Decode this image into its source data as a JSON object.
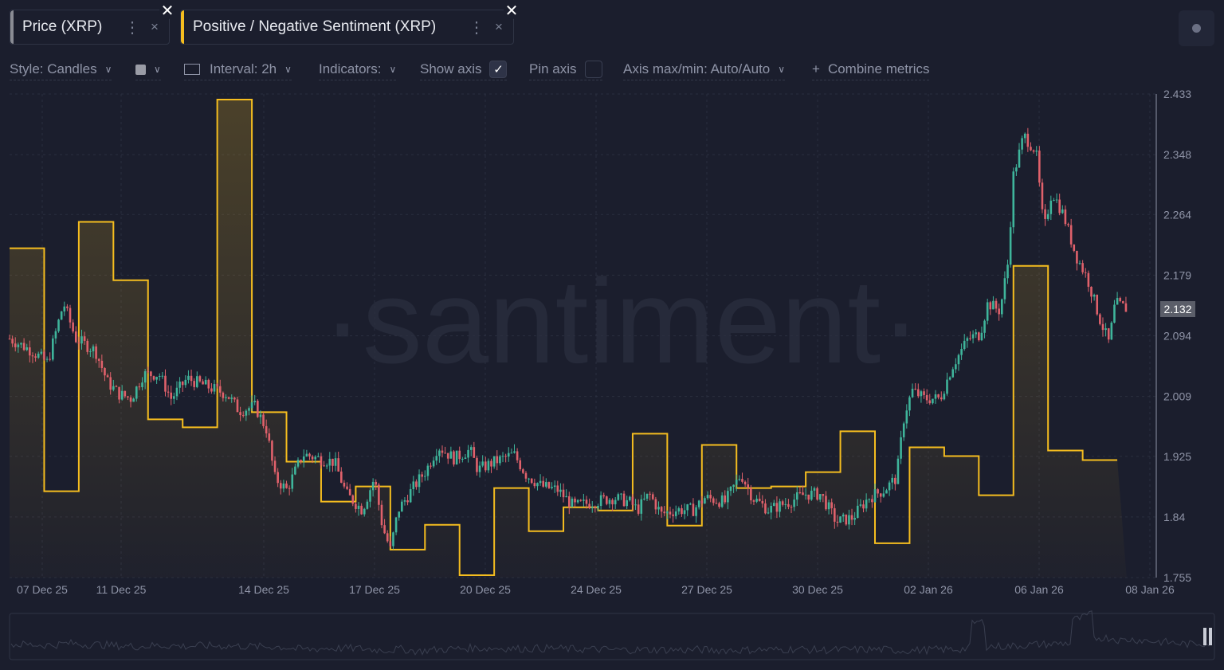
{
  "tabs": [
    {
      "label": "Price (XRP)",
      "color": "#8a8c94"
    },
    {
      "label": "Positive / Negative Sentiment (XRP)",
      "color": "#f5bd1f"
    }
  ],
  "tab_close_symbol": "×",
  "toolbar": {
    "style": "Style: Candles",
    "interval": "Interval: 2h",
    "indicators": "Indicators:",
    "show_axis": "Show axis",
    "show_axis_checked": true,
    "pin_axis": "Pin axis",
    "pin_axis_checked": false,
    "axis_maxmin": "Axis max/min: Auto/Auto",
    "combine": "Combine metrics"
  },
  "watermark": "·santiment·",
  "chart_data": {
    "type": "candlestick+step-line",
    "interval": "2h",
    "price_label": "2.132",
    "ylim": [
      1.755,
      2.433
    ],
    "y_ticks": [
      "2.433",
      "2.348",
      "2.264",
      "2.179",
      "2.094",
      "2.009",
      "1.925",
      "1.84",
      "1.755"
    ],
    "x_ticks": [
      "07 Dec 25",
      "11 Dec 25",
      "14 Dec 25",
      "17 Dec 25",
      "20 Dec 25",
      "24 Dec 25",
      "27 Dec 25",
      "30 Dec 25",
      "02 Jan 26",
      "06 Jan 26",
      "08 Jan 26"
    ],
    "x_unit": "days since 07 Dec 25",
    "xlim": [
      -0.94,
      32.0
    ],
    "colors": {
      "up": "#3fb59b",
      "down": "#e0616b",
      "sentiment": "#f5bd1f"
    },
    "price_series": [
      [
        -0.94,
        2.09
      ],
      [
        -0.3,
        2.073
      ],
      [
        0.16,
        2.056
      ],
      [
        0.62,
        2.14
      ],
      [
        0.97,
        2.09
      ],
      [
        1.54,
        2.073
      ],
      [
        1.89,
        2.029
      ],
      [
        2.23,
        2.012
      ],
      [
        2.58,
        2.006
      ],
      [
        2.92,
        2.04
      ],
      [
        3.38,
        2.04
      ],
      [
        3.73,
        2.006
      ],
      [
        4.19,
        2.034
      ],
      [
        4.77,
        2.023
      ],
      [
        5.34,
        2.012
      ],
      [
        5.69,
        1.989
      ],
      [
        6.15,
        1.995
      ],
      [
        6.49,
        1.962
      ],
      [
        6.72,
        1.895
      ],
      [
        7.07,
        1.878
      ],
      [
        7.53,
        1.928
      ],
      [
        7.99,
        1.922
      ],
      [
        8.45,
        1.917
      ],
      [
        8.79,
        1.872
      ],
      [
        9.25,
        1.85
      ],
      [
        9.6,
        1.895
      ],
      [
        9.83,
        1.827
      ],
      [
        10.06,
        1.794
      ],
      [
        10.29,
        1.85
      ],
      [
        10.75,
        1.883
      ],
      [
        11.1,
        1.906
      ],
      [
        11.44,
        1.939
      ],
      [
        11.9,
        1.922
      ],
      [
        12.36,
        1.934
      ],
      [
        12.59,
        1.906
      ],
      [
        13.05,
        1.917
      ],
      [
        13.63,
        1.928
      ],
      [
        13.97,
        1.9
      ],
      [
        14.43,
        1.883
      ],
      [
        14.89,
        1.878
      ],
      [
        15.35,
        1.855
      ],
      [
        15.93,
        1.861
      ],
      [
        16.51,
        1.867
      ],
      [
        16.97,
        1.861
      ],
      [
        17.2,
        1.85
      ],
      [
        17.54,
        1.872
      ],
      [
        17.89,
        1.844
      ],
      [
        18.35,
        1.85
      ],
      [
        18.81,
        1.85
      ],
      [
        19.15,
        1.867
      ],
      [
        19.73,
        1.861
      ],
      [
        20.19,
        1.9
      ],
      [
        20.53,
        1.867
      ],
      [
        20.99,
        1.85
      ],
      [
        21.57,
        1.861
      ],
      [
        22.03,
        1.872
      ],
      [
        22.49,
        1.872
      ],
      [
        22.95,
        1.833
      ],
      [
        23.41,
        1.839
      ],
      [
        23.87,
        1.867
      ],
      [
        24.33,
        1.878
      ],
      [
        24.68,
        1.895
      ],
      [
        24.91,
        1.984
      ],
      [
        25.14,
        2.017
      ],
      [
        25.48,
        2.006
      ],
      [
        25.94,
        2.006
      ],
      [
        26.29,
        2.051
      ],
      [
        26.75,
        2.09
      ],
      [
        27.09,
        2.096
      ],
      [
        27.32,
        2.14
      ],
      [
        27.67,
        2.129
      ],
      [
        27.9,
        2.196
      ],
      [
        28.06,
        2.319
      ],
      [
        28.36,
        2.375
      ],
      [
        28.71,
        2.353
      ],
      [
        28.94,
        2.241
      ],
      [
        29.17,
        2.297
      ],
      [
        29.51,
        2.263
      ],
      [
        29.86,
        2.207
      ],
      [
        30.2,
        2.174
      ],
      [
        30.55,
        2.118
      ],
      [
        30.82,
        2.084
      ],
      [
        31.0,
        2.14
      ],
      [
        31.33,
        2.132
      ]
    ],
    "sentiment_series": {
      "start": -0.94,
      "step_days": 1,
      "ylim": [
        0,
        6.05
      ],
      "values": [
        4.12,
        1.08,
        4.45,
        3.72,
        1.98,
        1.88,
        5.98,
        2.07,
        1.45,
        0.95,
        1.14,
        0.35,
        0.66,
        0.03,
        1.12,
        0.58,
        0.88,
        0.84,
        1.8,
        0.65,
        1.66,
        1.12,
        1.14,
        1.32,
        1.83,
        0.43,
        1.63,
        1.52,
        1.03,
        3.9,
        1.59,
        1.47
      ]
    }
  }
}
